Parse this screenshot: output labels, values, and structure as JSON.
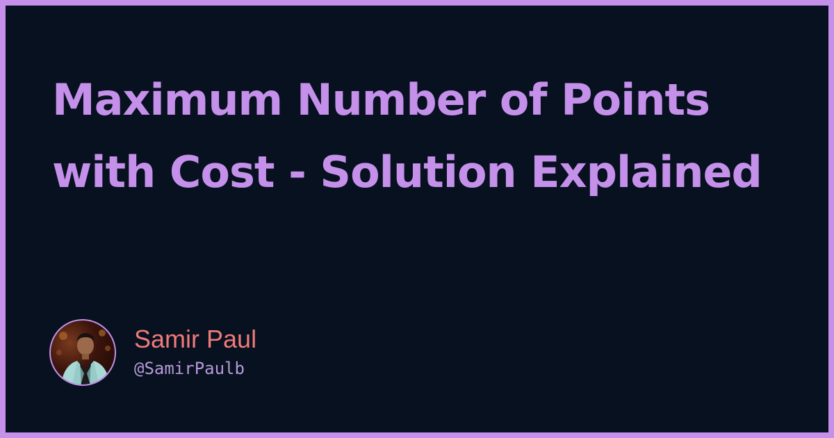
{
  "card": {
    "title": "Maximum Number of Points with Cost - Solution Explained",
    "author": {
      "name": "Samir Paul",
      "handle": "@SamirPaulb",
      "avatar_icon": "author-photo"
    },
    "colors": {
      "border": "#c490ea",
      "background": "#07111f",
      "title": "#c490ea",
      "name": "#f07a7a",
      "handle": "#b79ad8"
    }
  }
}
